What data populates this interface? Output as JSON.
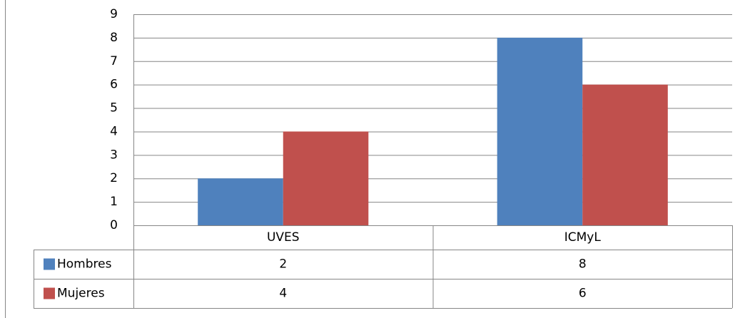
{
  "chart_data": {
    "type": "bar",
    "categories": [
      "UVES",
      "ICMyL"
    ],
    "series": [
      {
        "name": "Hombres",
        "color": "#4f81bd",
        "values": [
          2,
          8
        ]
      },
      {
        "name": "Mujeres",
        "color": "#c0504d",
        "values": [
          4,
          6
        ]
      }
    ],
    "ylim": [
      0,
      9
    ],
    "yticks": [
      0,
      1,
      2,
      3,
      4,
      5,
      6,
      7,
      8,
      9
    ],
    "grid": true,
    "data_table": true
  }
}
